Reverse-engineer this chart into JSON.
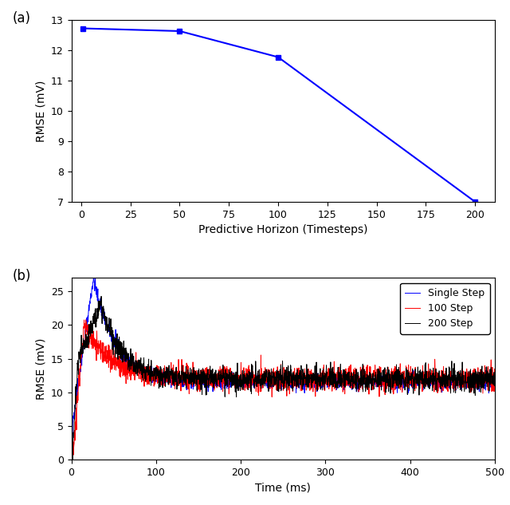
{
  "panel_a": {
    "x": [
      1,
      50,
      100,
      200
    ],
    "y": [
      12.73,
      12.64,
      11.78,
      7.0
    ],
    "color": "#0000ff",
    "marker": "s",
    "markersize": 5,
    "xlabel": "Predictive Horizon (Timesteps)",
    "ylabel": "RMSE (mV)",
    "xlim": [
      -5,
      210
    ],
    "ylim": [
      7,
      13
    ],
    "xticks": [
      0,
      25,
      50,
      75,
      100,
      125,
      150,
      175,
      200
    ],
    "yticks": [
      7,
      8,
      9,
      10,
      11,
      12,
      13
    ],
    "label": "(a)"
  },
  "panel_b": {
    "xlabel": "Time (ms)",
    "ylabel": "RMSE (mV)",
    "xlim": [
      0,
      500
    ],
    "ylim": [
      0,
      27
    ],
    "xticks": [
      0,
      100,
      200,
      300,
      400,
      500
    ],
    "yticks": [
      0,
      5,
      10,
      15,
      20,
      25
    ],
    "label": "(b)",
    "legend": [
      "Single Step",
      "100 Step",
      "200 Step"
    ],
    "colors": [
      "#0000ff",
      "#ff0000",
      "#000000"
    ]
  },
  "seed": 42,
  "n_points": 2000
}
